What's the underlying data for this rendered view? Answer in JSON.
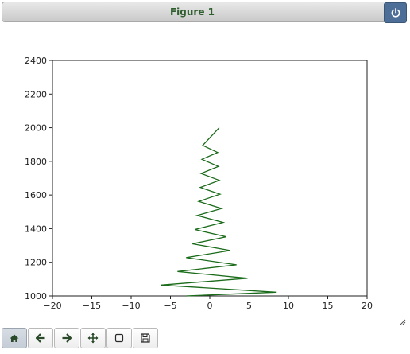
{
  "window": {
    "title": "Figure 1"
  },
  "toolbar": {
    "buttons": [
      {
        "name": "home-button",
        "icon": "home-icon",
        "active": true
      },
      {
        "name": "back-button",
        "icon": "arrow-left-icon"
      },
      {
        "name": "forward-button",
        "icon": "arrow-right-icon"
      },
      {
        "name": "pan-button",
        "icon": "move-icon"
      },
      {
        "name": "zoom-button",
        "icon": "zoom-rect-icon"
      },
      {
        "name": "save-button",
        "icon": "floppy-icon"
      }
    ]
  },
  "colors": {
    "line": "#1a6b1a",
    "accent": "#4d6e96",
    "text": "#1f1f1f"
  },
  "chart_data": {
    "type": "line",
    "xlim": [
      -20,
      20
    ],
    "ylim": [
      1000,
      2400
    ],
    "xticks": [
      -20,
      -15,
      -10,
      -5,
      0,
      5,
      10,
      15,
      20
    ],
    "yticks": [
      1000,
      1200,
      1400,
      1600,
      1800,
      2000,
      2200,
      2400
    ],
    "xtick_labels": [
      "−20",
      "−15",
      "−10",
      "−5",
      "0",
      "5",
      "10",
      "15",
      "20"
    ],
    "ytick_labels": [
      "1000",
      "1200",
      "1400",
      "1600",
      "1800",
      "2000",
      "2200",
      "2400"
    ],
    "grid": false,
    "series": [
      {
        "x": [
          -3,
          8.4,
          -6.2,
          4.8,
          -4.1,
          3.4,
          -3.0,
          2.6,
          -2.2,
          2.1,
          -1.9,
          1.7,
          -1.6,
          1.5,
          -1.4,
          1.3,
          -1.2,
          1.2,
          -1.1,
          1.1,
          -1.0,
          1.0,
          -0.9,
          1.2
        ],
        "y": [
          1000,
          1022,
          1065,
          1105,
          1145,
          1185,
          1228,
          1270,
          1310,
          1352,
          1395,
          1437,
          1478,
          1520,
          1562,
          1605,
          1645,
          1687,
          1728,
          1770,
          1812,
          1853,
          1895,
          2000
        ]
      }
    ]
  }
}
